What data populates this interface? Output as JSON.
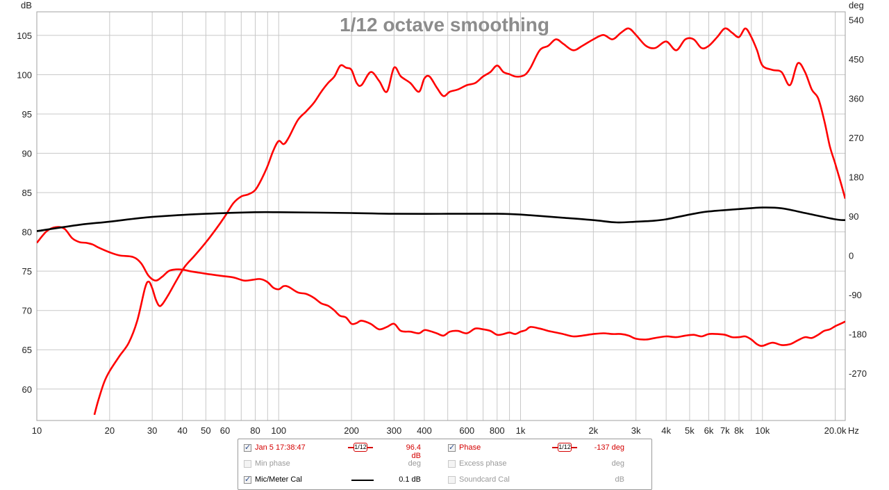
{
  "chart_data": {
    "type": "line",
    "title": "1/12 octave smoothing",
    "xlabel": "Hz",
    "ylabel_left": "dB",
    "ylabel_right": "deg",
    "x_scale": "log",
    "xlim": [
      10,
      22000
    ],
    "ylim_left": [
      56,
      108
    ],
    "ylim_right": [
      -378,
      558
    ],
    "grid": true,
    "x_ticks": [
      {
        "v": 10,
        "label": "10"
      },
      {
        "v": 20,
        "label": "20"
      },
      {
        "v": 30,
        "label": "30"
      },
      {
        "v": 40,
        "label": "40"
      },
      {
        "v": 50,
        "label": "50"
      },
      {
        "v": 60,
        "label": "60"
      },
      {
        "v": 80,
        "label": "80"
      },
      {
        "v": 100,
        "label": "100"
      },
      {
        "v": 200,
        "label": "200"
      },
      {
        "v": 300,
        "label": "300"
      },
      {
        "v": 400,
        "label": "400"
      },
      {
        "v": 600,
        "label": "600"
      },
      {
        "v": 800,
        "label": "800"
      },
      {
        "v": 1000,
        "label": "1k"
      },
      {
        "v": 2000,
        "label": "2k"
      },
      {
        "v": 3000,
        "label": "3k"
      },
      {
        "v": 4000,
        "label": "4k"
      },
      {
        "v": 5000,
        "label": "5k"
      },
      {
        "v": 6000,
        "label": "6k"
      },
      {
        "v": 7000,
        "label": "7k"
      },
      {
        "v": 8000,
        "label": "8k"
      },
      {
        "v": 10000,
        "label": "10k"
      },
      {
        "v": 20000,
        "label": "20.0k"
      }
    ],
    "y_ticks_left": [
      {
        "v": 60,
        "label": "60"
      },
      {
        "v": 65,
        "label": "65"
      },
      {
        "v": 70,
        "label": "70"
      },
      {
        "v": 75,
        "label": "75"
      },
      {
        "v": 80,
        "label": "80"
      },
      {
        "v": 85,
        "label": "85"
      },
      {
        "v": 90,
        "label": "90"
      },
      {
        "v": 95,
        "label": "95"
      },
      {
        "v": 100,
        "label": "100"
      },
      {
        "v": 105,
        "label": "105"
      }
    ],
    "y_ticks_right": [
      {
        "v": -270,
        "label": "-270"
      },
      {
        "v": -180,
        "label": "-180"
      },
      {
        "v": -90,
        "label": "-90"
      },
      {
        "v": 0,
        "label": "0"
      },
      {
        "v": 90,
        "label": "90"
      },
      {
        "v": 180,
        "label": "180"
      },
      {
        "v": 270,
        "label": "270"
      },
      {
        "v": 360,
        "label": "360"
      },
      {
        "v": 450,
        "label": "450"
      },
      {
        "v": 540,
        "label": "540"
      }
    ],
    "series": [
      {
        "name": "Jan 5 17:38:47",
        "axis": "left",
        "color": "#ff0000",
        "x": [
          10,
          11,
          12,
          13,
          14,
          15,
          16,
          17,
          18,
          20,
          22,
          25,
          27,
          29,
          31,
          33,
          35,
          37,
          40,
          43,
          47,
          52,
          58,
          65,
          72,
          78,
          84,
          90,
          95,
          100,
          105,
          110,
          120,
          130,
          140,
          150,
          160,
          170,
          175,
          180,
          190,
          200,
          210,
          220,
          240,
          260,
          280,
          300,
          320,
          350,
          380,
          400,
          420,
          450,
          480,
          510,
          550,
          600,
          650,
          700,
          750,
          800,
          850,
          900,
          950,
          1000,
          1050,
          1100,
          1200,
          1300,
          1400,
          1500,
          1650,
          1800,
          2000,
          2200,
          2400,
          2600,
          2800,
          3000,
          3300,
          3600,
          4000,
          4400,
          4800,
          5200,
          5600,
          6000,
          6500,
          7000,
          7500,
          8000,
          8500,
          9000,
          9500,
          10000,
          11000,
          12000,
          13000,
          14000,
          15000,
          16000,
          17000,
          18000,
          19000,
          20000,
          21000,
          22000
        ],
        "values": [
          78.6,
          80.1,
          80.6,
          80.4,
          79.2,
          78.7,
          78.6,
          78.4,
          78.0,
          77.4,
          77.0,
          76.8,
          76.0,
          74.4,
          73.8,
          74.3,
          75.0,
          75.2,
          75.2,
          75.0,
          74.8,
          74.6,
          74.4,
          74.2,
          73.8,
          73.9,
          74.0,
          73.6,
          72.9,
          72.7,
          73.1,
          73.0,
          72.3,
          72.1,
          71.6,
          70.9,
          70.6,
          70.0,
          69.6,
          69.3,
          69.1,
          68.3,
          68.4,
          68.7,
          68.3,
          67.6,
          67.9,
          68.3,
          67.4,
          67.3,
          67.1,
          67.5,
          67.4,
          67.1,
          66.8,
          67.3,
          67.4,
          67.1,
          67.7,
          67.6,
          67.4,
          66.9,
          67.0,
          67.2,
          67.0,
          67.3,
          67.5,
          67.9,
          67.7,
          67.4,
          67.2,
          67.0,
          66.7,
          66.8,
          67.0,
          67.1,
          67.0,
          67.0,
          66.8,
          66.4,
          66.3,
          66.5,
          66.7,
          66.6,
          66.8,
          66.9,
          66.7,
          67.0,
          67.0,
          66.9,
          66.6,
          66.6,
          66.7,
          66.3,
          65.7,
          65.5,
          65.9,
          65.6,
          65.7,
          66.2,
          66.6,
          66.5,
          66.9,
          67.4,
          67.6,
          68.0,
          68.3,
          68.6
        ]
      },
      {
        "name": "Phase",
        "axis": "right",
        "color": "#ff0000",
        "x": [
          17.3,
          18,
          19,
          20,
          22,
          24,
          26,
          28,
          29,
          30,
          31,
          32,
          33,
          35,
          38,
          41,
          45,
          50,
          55,
          60,
          65,
          70,
          75,
          80,
          85,
          90,
          95,
          100,
          105,
          110,
          120,
          130,
          140,
          150,
          160,
          170,
          180,
          190,
          200,
          210,
          220,
          240,
          260,
          280,
          300,
          320,
          350,
          380,
          400,
          420,
          450,
          480,
          510,
          550,
          600,
          650,
          700,
          750,
          800,
          850,
          900,
          950,
          1000,
          1050,
          1100,
          1200,
          1300,
          1400,
          1500,
          1650,
          1800,
          2000,
          2200,
          2400,
          2600,
          2800,
          3000,
          3300,
          3600,
          4000,
          4400,
          4800,
          5200,
          5600,
          6000,
          6500,
          7000,
          7500,
          8000,
          8500,
          9000,
          9500,
          10000,
          11000,
          12000,
          13000,
          14000,
          15000,
          16000,
          17000,
          18000,
          19000,
          20000,
          21000,
          22000
        ],
        "values": [
          -365,
          -330,
          -290,
          -265,
          -230,
          -200,
          -150,
          -75,
          -60,
          -75,
          -100,
          -115,
          -112,
          -90,
          -55,
          -25,
          0,
          30,
          60,
          90,
          120,
          135,
          140,
          150,
          175,
          205,
          240,
          262,
          255,
          270,
          310,
          330,
          350,
          375,
          395,
          410,
          435,
          430,
          425,
          395,
          390,
          420,
          400,
          375,
          430,
          410,
          395,
          375,
          405,
          410,
          385,
          365,
          375,
          380,
          390,
          395,
          410,
          420,
          435,
          420,
          415,
          410,
          410,
          415,
          430,
          470,
          480,
          495,
          485,
          470,
          480,
          495,
          505,
          495,
          510,
          520,
          505,
          480,
          475,
          490,
          470,
          495,
          495,
          475,
          480,
          500,
          520,
          510,
          500,
          520,
          500,
          470,
          435,
          425,
          420,
          390,
          440,
          420,
          380,
          360,
          310,
          250,
          210,
          170,
          130
        ]
      },
      {
        "name": "Mic/Meter Cal",
        "axis": "left",
        "color": "#000000",
        "x": [
          10,
          15,
          20,
          30,
          50,
          80,
          100,
          200,
          300,
          500,
          800,
          1000,
          1500,
          2000,
          2500,
          3000,
          3500,
          4000,
          5000,
          6000,
          8000,
          10000,
          12000,
          15000,
          20000,
          22000
        ],
        "values": [
          80.1,
          80.9,
          81.3,
          81.9,
          82.3,
          82.5,
          82.5,
          82.4,
          82.3,
          82.3,
          82.3,
          82.2,
          81.8,
          81.5,
          81.2,
          81.3,
          81.4,
          81.6,
          82.2,
          82.6,
          82.9,
          83.1,
          83.0,
          82.4,
          81.6,
          81.5
        ]
      }
    ]
  },
  "legend": {
    "rows": [
      [
        {
          "label": "Jan 5 17:38:47",
          "checked": true,
          "enabled": true,
          "style": "red",
          "swatch": "smooth",
          "smooth_label": "1/12",
          "value": "96.4 dB"
        },
        {
          "label": "Phase",
          "checked": true,
          "enabled": true,
          "style": "red",
          "swatch": "smooth",
          "smooth_label": "1/12",
          "value": "-137 deg"
        }
      ],
      [
        {
          "label": "Min phase",
          "checked": false,
          "enabled": false,
          "style": "gray",
          "swatch": "none",
          "value": "deg"
        },
        {
          "label": "Excess phase",
          "checked": false,
          "enabled": false,
          "style": "gray",
          "swatch": "none",
          "value": "deg"
        }
      ],
      [
        {
          "label": "Mic/Meter Cal",
          "checked": true,
          "enabled": true,
          "style": "black",
          "swatch": "line",
          "value": "0.1 dB"
        },
        {
          "label": "Soundcard Cal",
          "checked": false,
          "enabled": false,
          "style": "gray",
          "swatch": "none",
          "value": "dB"
        }
      ]
    ]
  }
}
